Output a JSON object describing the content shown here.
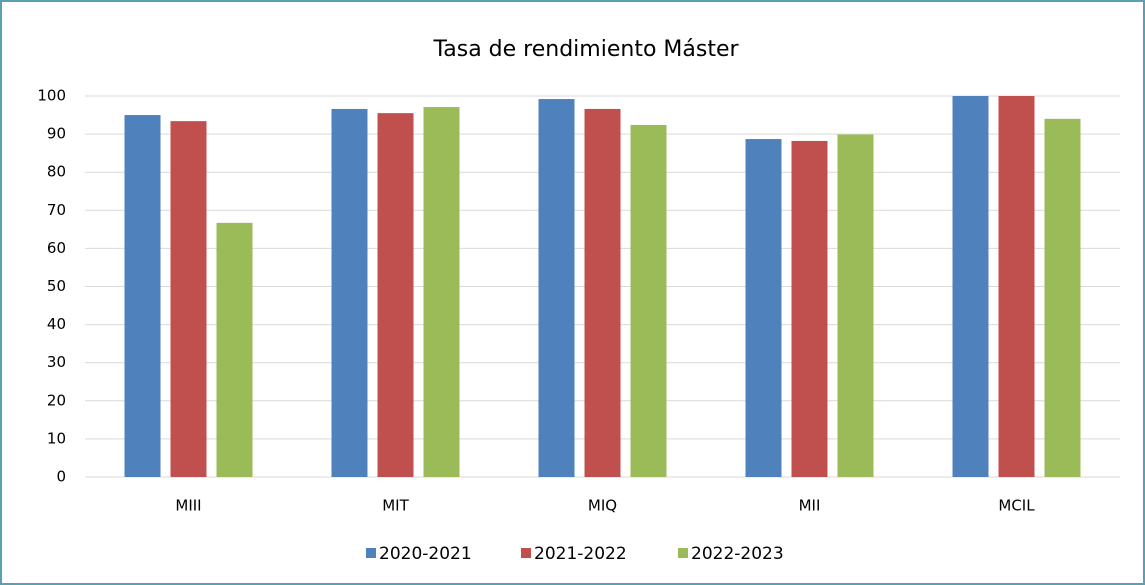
{
  "chart_data": {
    "type": "bar",
    "title": "Tasa de rendimiento  Máster",
    "categories": [
      "MIII",
      "MIT",
      "MIQ",
      "MII",
      "MCIL"
    ],
    "series": [
      {
        "name": "2020-2021",
        "color": "#4f81bd",
        "values": [
          95,
          96.6,
          99.2,
          88.7,
          100
        ]
      },
      {
        "name": "2021-2022",
        "color": "#c0504d",
        "values": [
          93.4,
          95.5,
          96.6,
          88.2,
          100
        ]
      },
      {
        "name": "2022-2023",
        "color": "#9bbb59",
        "values": [
          66.7,
          97.1,
          92.4,
          89.9,
          94
        ]
      }
    ],
    "ylim": [
      0,
      100
    ],
    "yticks": [
      0,
      10,
      20,
      30,
      40,
      50,
      60,
      70,
      80,
      90,
      100
    ],
    "grid": true,
    "legend": "bottom"
  }
}
